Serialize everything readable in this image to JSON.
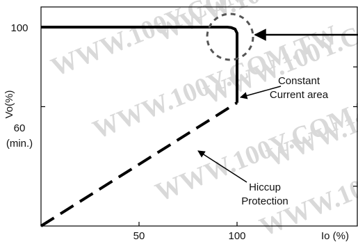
{
  "chart_data": {
    "type": "line",
    "title": "",
    "xlabel": "Io (%)",
    "ylabel": "Vo(%)",
    "xlim": [
      0,
      120
    ],
    "ylim": [
      0,
      105
    ],
    "x_ticks": [
      {
        "value": 50,
        "label": "50"
      },
      {
        "value": 100,
        "label": "100"
      }
    ],
    "y_ticks": [
      {
        "value": 100,
        "label": "100",
        "sublabel": ""
      },
      {
        "value": 60,
        "label": "60",
        "sublabel": "(min.)"
      }
    ],
    "series": [
      {
        "style": "solid",
        "color": "#000000",
        "x": [
          0,
          95,
          97,
          99,
          100,
          100
        ],
        "y": [
          100,
          100,
          99.8,
          99,
          97,
          62
        ]
      },
      {
        "style": "dashed",
        "color": "#000000",
        "x": [
          0,
          100
        ],
        "y": [
          0,
          62
        ]
      }
    ],
    "annotations": [
      {
        "lines": [
          "Constant",
          "Current area"
        ]
      },
      {
        "lines": [
          "Hiccup",
          "Protection"
        ]
      }
    ],
    "highlight": {
      "style": "dashed-circle",
      "x": 98,
      "y": 100
    },
    "watermark": "WWW.100Y.COM.TW"
  }
}
